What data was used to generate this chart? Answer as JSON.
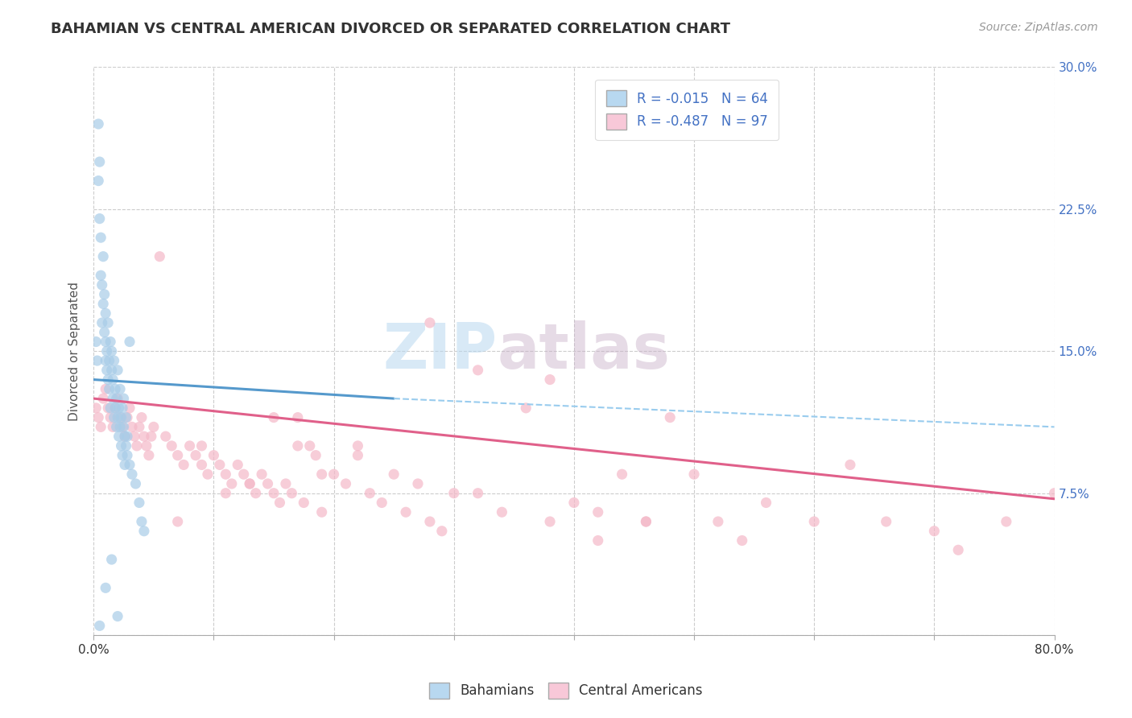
{
  "title": "BAHAMIAN VS CENTRAL AMERICAN DIVORCED OR SEPARATED CORRELATION CHART",
  "source": "Source: ZipAtlas.com",
  "ylabel": "Divorced or Separated",
  "xlim": [
    0.0,
    0.8
  ],
  "ylim": [
    0.0,
    0.3
  ],
  "xticks": [
    0.0,
    0.1,
    0.2,
    0.3,
    0.4,
    0.5,
    0.6,
    0.7,
    0.8
  ],
  "xtick_labels_show": [
    "0.0%",
    "",
    "",
    "",
    "",
    "",
    "",
    "",
    "80.0%"
  ],
  "yticks": [
    0.0,
    0.075,
    0.15,
    0.225,
    0.3
  ],
  "ytick_labels_right": [
    "",
    "7.5%",
    "15.0%",
    "22.5%",
    "30.0%"
  ],
  "legend_label1": "Bahamians",
  "legend_label2": "Central Americans",
  "R1": -0.015,
  "N1": 64,
  "R2": -0.487,
  "N2": 97,
  "color_blue": "#a8cce8",
  "color_pink": "#f4b8c8",
  "color_blue_line": "#5599cc",
  "color_pink_line": "#e0608a",
  "color_blue_dashed": "#99ccee",
  "color_blue_legend_fill": "#b8d8f0",
  "color_pink_legend_fill": "#f8c8d8",
  "watermark_text": "ZIPatlas",
  "watermark_color": "#d0e8f4",
  "background_color": "#ffffff",
  "grid_color": "#cccccc",
  "blue_x": [
    0.002,
    0.003,
    0.004,
    0.004,
    0.005,
    0.005,
    0.006,
    0.006,
    0.007,
    0.007,
    0.008,
    0.008,
    0.009,
    0.009,
    0.01,
    0.01,
    0.01,
    0.011,
    0.011,
    0.012,
    0.012,
    0.013,
    0.013,
    0.014,
    0.014,
    0.015,
    0.015,
    0.016,
    0.016,
    0.017,
    0.017,
    0.018,
    0.018,
    0.019,
    0.019,
    0.02,
    0.02,
    0.021,
    0.021,
    0.022,
    0.022,
    0.023,
    0.023,
    0.024,
    0.024,
    0.025,
    0.025,
    0.026,
    0.026,
    0.027,
    0.027,
    0.028,
    0.028,
    0.03,
    0.03,
    0.032,
    0.035,
    0.038,
    0.04,
    0.042,
    0.01,
    0.015,
    0.02,
    0.005
  ],
  "blue_y": [
    0.155,
    0.145,
    0.27,
    0.24,
    0.25,
    0.22,
    0.19,
    0.21,
    0.185,
    0.165,
    0.2,
    0.175,
    0.18,
    0.16,
    0.155,
    0.17,
    0.145,
    0.15,
    0.14,
    0.135,
    0.165,
    0.145,
    0.13,
    0.155,
    0.12,
    0.15,
    0.14,
    0.135,
    0.125,
    0.145,
    0.115,
    0.13,
    0.12,
    0.125,
    0.11,
    0.14,
    0.115,
    0.12,
    0.105,
    0.13,
    0.11,
    0.115,
    0.1,
    0.12,
    0.095,
    0.11,
    0.125,
    0.105,
    0.09,
    0.115,
    0.1,
    0.105,
    0.095,
    0.155,
    0.09,
    0.085,
    0.08,
    0.07,
    0.06,
    0.055,
    0.025,
    0.04,
    0.01,
    0.005
  ],
  "pink_x": [
    0.002,
    0.004,
    0.006,
    0.008,
    0.01,
    0.012,
    0.014,
    0.016,
    0.018,
    0.02,
    0.022,
    0.024,
    0.026,
    0.028,
    0.03,
    0.032,
    0.034,
    0.036,
    0.038,
    0.04,
    0.042,
    0.044,
    0.046,
    0.048,
    0.05,
    0.055,
    0.06,
    0.065,
    0.07,
    0.075,
    0.08,
    0.085,
    0.09,
    0.095,
    0.1,
    0.105,
    0.11,
    0.115,
    0.12,
    0.125,
    0.13,
    0.135,
    0.14,
    0.145,
    0.15,
    0.155,
    0.16,
    0.165,
    0.17,
    0.175,
    0.18,
    0.185,
    0.19,
    0.2,
    0.21,
    0.22,
    0.23,
    0.24,
    0.25,
    0.26,
    0.27,
    0.28,
    0.29,
    0.3,
    0.32,
    0.34,
    0.36,
    0.38,
    0.4,
    0.42,
    0.44,
    0.46,
    0.48,
    0.5,
    0.52,
    0.54,
    0.56,
    0.6,
    0.63,
    0.66,
    0.7,
    0.72,
    0.76,
    0.8,
    0.28,
    0.32,
    0.38,
    0.42,
    0.46,
    0.22,
    0.19,
    0.17,
    0.15,
    0.13,
    0.11,
    0.09,
    0.07
  ],
  "pink_y": [
    0.12,
    0.115,
    0.11,
    0.125,
    0.13,
    0.12,
    0.115,
    0.11,
    0.12,
    0.125,
    0.115,
    0.11,
    0.105,
    0.115,
    0.12,
    0.11,
    0.105,
    0.1,
    0.11,
    0.115,
    0.105,
    0.1,
    0.095,
    0.105,
    0.11,
    0.2,
    0.105,
    0.1,
    0.095,
    0.09,
    0.1,
    0.095,
    0.09,
    0.085,
    0.095,
    0.09,
    0.085,
    0.08,
    0.09,
    0.085,
    0.08,
    0.075,
    0.085,
    0.08,
    0.075,
    0.07,
    0.08,
    0.075,
    0.115,
    0.07,
    0.1,
    0.095,
    0.065,
    0.085,
    0.08,
    0.095,
    0.075,
    0.07,
    0.085,
    0.065,
    0.08,
    0.06,
    0.055,
    0.075,
    0.075,
    0.065,
    0.12,
    0.06,
    0.07,
    0.05,
    0.085,
    0.06,
    0.115,
    0.085,
    0.06,
    0.05,
    0.07,
    0.06,
    0.09,
    0.06,
    0.055,
    0.045,
    0.06,
    0.075,
    0.165,
    0.14,
    0.135,
    0.065,
    0.06,
    0.1,
    0.085,
    0.1,
    0.115,
    0.08,
    0.075,
    0.1,
    0.06
  ]
}
